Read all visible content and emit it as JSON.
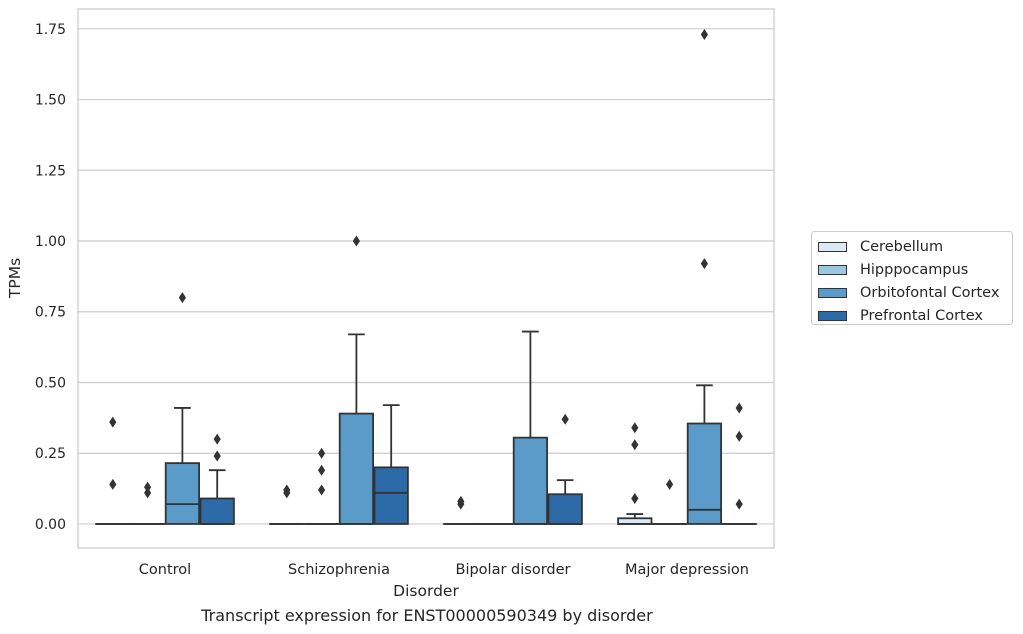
{
  "chart_data": {
    "type": "box",
    "xlabel": "Disorder",
    "ylabel": "TPMs",
    "caption": "Transcript expression for ENST00000590349 by disorder",
    "ylim": [
      -0.085,
      1.82
    ],
    "yticks": [
      0.0,
      0.25,
      0.5,
      0.75,
      1.0,
      1.25,
      1.5,
      1.75
    ],
    "ytick_labels": [
      "0.00",
      "0.25",
      "0.50",
      "0.75",
      "1.00",
      "1.25",
      "1.50",
      "1.75"
    ],
    "grid": "horizontal",
    "legend_position": "right",
    "categories": [
      "Control",
      "Schizophrenia",
      "Bipolar disorder",
      "Major depression"
    ],
    "series": [
      {
        "name": "Cerebellum",
        "color": "#dbe9f6",
        "boxes": [
          {
            "q1": 0,
            "median": 0,
            "q3": 0,
            "whisker_low": 0,
            "whisker_high": 0,
            "outliers": [
              0.36,
              0.14
            ]
          },
          {
            "q1": 0,
            "median": 0,
            "q3": 0,
            "whisker_low": 0,
            "whisker_high": 0,
            "outliers": [
              0.12,
              0.11
            ]
          },
          {
            "q1": 0,
            "median": 0,
            "q3": 0,
            "whisker_low": 0,
            "whisker_high": 0,
            "outliers": [
              0.08,
              0.07
            ]
          },
          {
            "q1": 0,
            "median": 0,
            "q3": 0.02,
            "whisker_low": 0,
            "whisker_high": 0.035,
            "outliers": [
              0.34,
              0.28,
              0.09
            ]
          }
        ]
      },
      {
        "name": "Hipppocampus",
        "color": "#9ac8e0",
        "boxes": [
          {
            "q1": 0,
            "median": 0,
            "q3": 0,
            "whisker_low": 0,
            "whisker_high": 0,
            "outliers": [
              0.13,
              0.11
            ]
          },
          {
            "q1": 0,
            "median": 0,
            "q3": 0,
            "whisker_low": 0,
            "whisker_high": 0,
            "outliers": [
              0.25,
              0.19,
              0.12
            ]
          },
          {
            "q1": 0,
            "median": 0,
            "q3": 0,
            "whisker_low": 0,
            "whisker_high": 0,
            "outliers": []
          },
          {
            "q1": 0,
            "median": 0,
            "q3": 0,
            "whisker_low": 0,
            "whisker_high": 0,
            "outliers": [
              0.14
            ]
          }
        ]
      },
      {
        "name": "Orbitofontal Cortex",
        "color": "#5a9bc9",
        "boxes": [
          {
            "q1": 0,
            "median": 0.07,
            "q3": 0.215,
            "whisker_low": 0,
            "whisker_high": 0.41,
            "outliers": [
              0.8
            ]
          },
          {
            "q1": 0,
            "median": 0,
            "q3": 0.39,
            "whisker_low": 0,
            "whisker_high": 0.67,
            "outliers": [
              1.0
            ]
          },
          {
            "q1": 0,
            "median": 0,
            "q3": 0.305,
            "whisker_low": 0,
            "whisker_high": 0.68,
            "outliers": []
          },
          {
            "q1": 0,
            "median": 0.05,
            "q3": 0.355,
            "whisker_low": 0,
            "whisker_high": 0.49,
            "outliers": [
              1.73,
              0.92
            ]
          }
        ]
      },
      {
        "name": "Prefrontal Cortex",
        "color": "#2c6aa8",
        "boxes": [
          {
            "q1": 0,
            "median": 0,
            "q3": 0.09,
            "whisker_low": 0,
            "whisker_high": 0.19,
            "outliers": [
              0.3,
              0.24
            ]
          },
          {
            "q1": 0,
            "median": 0.11,
            "q3": 0.2,
            "whisker_low": 0,
            "whisker_high": 0.42,
            "outliers": []
          },
          {
            "q1": 0,
            "median": 0,
            "q3": 0.105,
            "whisker_low": 0,
            "whisker_high": 0.155,
            "outliers": [
              0.37
            ]
          },
          {
            "q1": 0,
            "median": 0,
            "q3": 0,
            "whisker_low": 0,
            "whisker_high": 0,
            "outliers": [
              0.41,
              0.31,
              0.07
            ]
          }
        ]
      }
    ]
  }
}
